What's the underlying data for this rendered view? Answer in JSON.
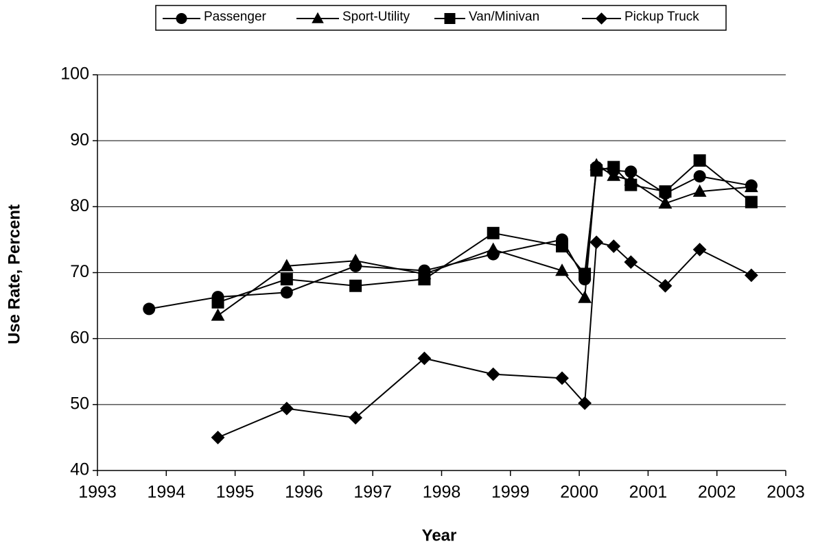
{
  "chart_data": {
    "type": "line",
    "x_label": "Year",
    "y_label": "Use Rate, Percent",
    "x": [
      1993.75,
      1994.75,
      1995.75,
      1996.75,
      1997.75,
      1998.75,
      1999.75,
      2000.08,
      2000.25,
      2000.5,
      2000.75,
      2001.25,
      2001.75,
      2002.5
    ],
    "series": [
      {
        "name": "Passenger",
        "color": "#000000",
        "marker": "circle",
        "values": [
          64.5,
          66.3,
          67,
          71,
          70.3,
          72.8,
          75,
          69,
          86,
          85.5,
          85.3,
          82,
          84.6,
          83.2
        ]
      },
      {
        "name": "Sport-Utility",
        "color": "#000000",
        "marker": "triangle",
        "values": [
          null,
          63.5,
          71,
          71.8,
          69.8,
          73.5,
          70.3,
          66.2,
          86.3,
          84.7,
          84,
          80.5,
          82.3,
          83
        ]
      },
      {
        "name": "Van/Minivan",
        "color": "#000000",
        "marker": "square",
        "values": [
          null,
          65.5,
          69,
          68,
          69,
          76,
          74,
          69.8,
          85.5,
          86,
          83.3,
          82.3,
          87,
          80.7
        ]
      },
      {
        "name": "Pickup Truck",
        "color": "#000000",
        "marker": "diamond",
        "values": [
          null,
          45,
          49.4,
          48,
          57,
          54.6,
          54,
          50.2,
          74.6,
          74,
          71.6,
          68,
          73.5,
          69.6
        ]
      }
    ],
    "xlim": [
      1993,
      2003
    ],
    "xticks": [
      1993,
      1994,
      1995,
      1996,
      1997,
      1998,
      1999,
      2000,
      2001,
      2002,
      2003
    ],
    "ylim": [
      40,
      100
    ],
    "yticks": [
      40,
      50,
      60,
      70,
      80,
      90,
      100
    ],
    "grid": true,
    "legend": "top"
  }
}
